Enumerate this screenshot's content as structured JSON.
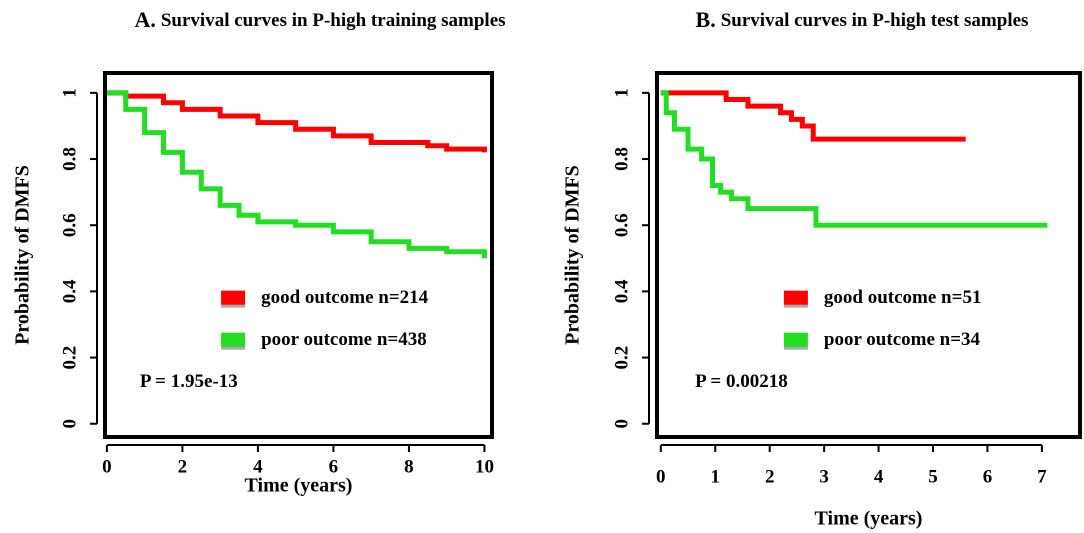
{
  "chart_data": [
    {
      "type": "line",
      "panel_label": "A.",
      "title": "Survival curves in P-high training samples",
      "xlabel": "Time (years)",
      "ylabel": "Probability of DMFS",
      "annotation": "P = 1.95e-13",
      "legend": "lower right",
      "xlim": [
        -0.05,
        10.2
      ],
      "ylim": [
        -0.04,
        1.06
      ],
      "xticks": [
        0,
        2,
        4,
        6,
        8,
        10
      ],
      "yticks": [
        0,
        0.2,
        0.4,
        0.6,
        0.8,
        1
      ],
      "series": [
        {
          "name": "good outcome n=214",
          "color": "#ff0000",
          "x": [
            0,
            0.5,
            1.5,
            2,
            3,
            4,
            5,
            6,
            7,
            8.5,
            9,
            10
          ],
          "values": [
            1,
            0.99,
            0.97,
            0.95,
            0.93,
            0.91,
            0.89,
            0.87,
            0.85,
            0.84,
            0.83,
            0.82
          ]
        },
        {
          "name": "poor outcome n=438",
          "color": "#22dd22",
          "x": [
            0,
            0.5,
            1,
            1.5,
            2,
            2.5,
            3,
            3.5,
            4,
            5,
            6,
            7,
            8,
            9,
            10
          ],
          "values": [
            1,
            0.95,
            0.88,
            0.82,
            0.76,
            0.71,
            0.66,
            0.63,
            0.61,
            0.6,
            0.58,
            0.55,
            0.53,
            0.52,
            0.5
          ]
        }
      ]
    },
    {
      "type": "line",
      "panel_label": "B.",
      "title": "Survival curves in P-high test samples",
      "xlabel": "Time (years)",
      "ylabel": "Probability of DMFS",
      "annotation": "P = 0.00218",
      "legend": "lower right",
      "xlim": [
        -0.07,
        7.7
      ],
      "ylim": [
        -0.04,
        1.06
      ],
      "xticks": [
        0,
        1,
        2,
        3,
        4,
        5,
        6,
        7
      ],
      "yticks": [
        0,
        0.2,
        0.4,
        0.6,
        0.8,
        1
      ],
      "series": [
        {
          "name": "good outcome n=51",
          "color": "#ff0000",
          "x": [
            0,
            1.2,
            1.6,
            2.2,
            2.4,
            2.6,
            2.8,
            5.6
          ],
          "values": [
            1,
            0.98,
            0.96,
            0.94,
            0.92,
            0.9,
            0.86,
            0.86
          ]
        },
        {
          "name": "poor outcome n=34",
          "color": "#22dd22",
          "x": [
            0,
            0.1,
            0.25,
            0.5,
            0.75,
            0.95,
            1.1,
            1.3,
            1.6,
            2.8,
            2.85,
            7.1
          ],
          "values": [
            1,
            0.94,
            0.89,
            0.83,
            0.8,
            0.72,
            0.7,
            0.68,
            0.65,
            0.65,
            0.6,
            0.6
          ]
        }
      ]
    }
  ]
}
